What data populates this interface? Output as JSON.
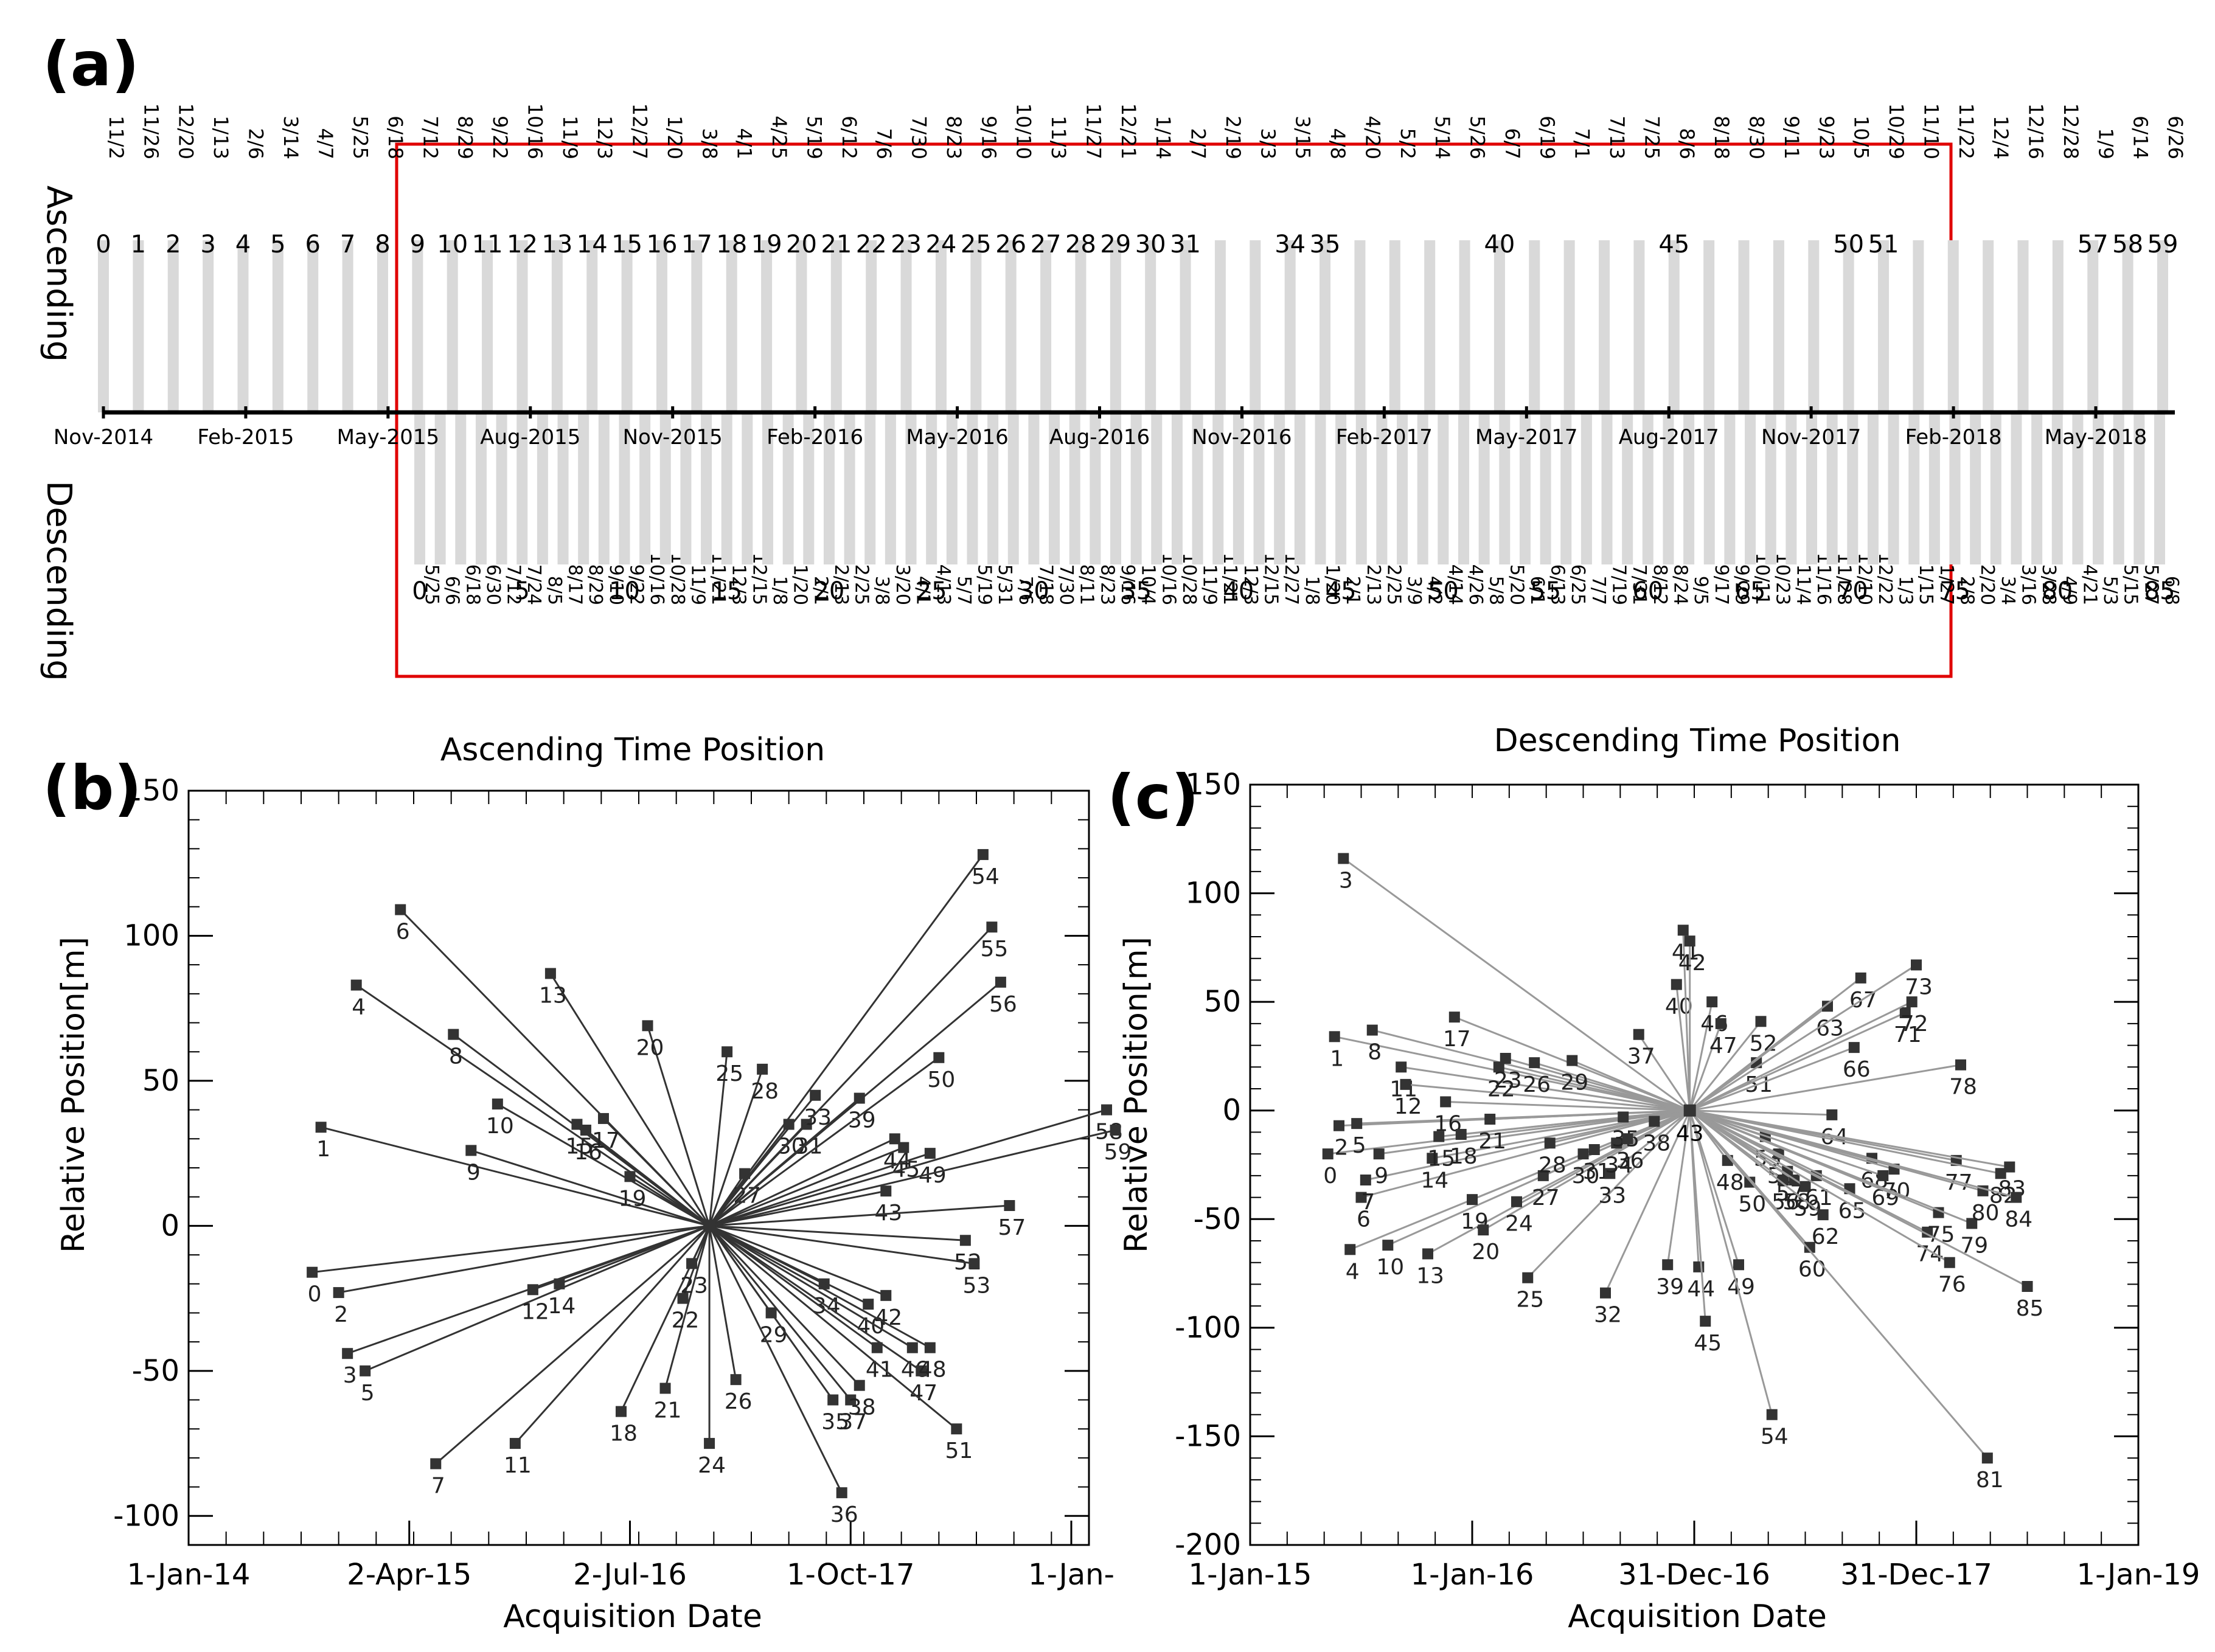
{
  "panel_labels": {
    "a": "(a)",
    "b": "(b)",
    "c": "(c)"
  },
  "colors": {
    "bar": "#d9d9d9",
    "frame": "#e00000",
    "axis": "#000000",
    "line_b": "#333333",
    "line_c": "#999999",
    "marker": "#333333"
  },
  "chart_data": [
    {
      "id": "timeline",
      "type": "bar",
      "title": "",
      "ascending_label": "Ascending",
      "descending_label": "Descending",
      "month_labels": [
        "Nov-2014",
        "Feb-2015",
        "May-2015",
        "Aug-2015",
        "Nov-2015",
        "Feb-2016",
        "May-2016",
        "Aug-2016",
        "Nov-2016",
        "Feb-2017",
        "May-2017",
        "Aug-2017",
        "Nov-2017",
        "Feb-2018",
        "May-2018"
      ],
      "ascending_dates": [
        "11/2",
        "11/26",
        "12/20",
        "1/13",
        "2/6",
        "3/14",
        "4/7",
        "5/25",
        "6/18",
        "7/12",
        "8/29",
        "9/22",
        "10/16",
        "11/9",
        "12/3",
        "12/27",
        "1/20",
        "3/8",
        "4/1",
        "4/25",
        "5/19",
        "6/12",
        "7/6",
        "7/30",
        "8/23",
        "9/16",
        "10/10",
        "11/3",
        "11/27",
        "12/21",
        "1/14",
        "2/7",
        "2/19",
        "3/3",
        "3/15",
        "4/8",
        "4/20",
        "5/2",
        "5/14",
        "5/26",
        "6/7",
        "6/19",
        "7/1",
        "7/13",
        "7/25",
        "8/6",
        "8/18",
        "8/30",
        "9/11",
        "9/23",
        "10/5",
        "10/29",
        "11/10",
        "11/22",
        "12/4",
        "12/16",
        "12/28",
        "1/9",
        "6/14",
        "6/26"
      ],
      "ascending_index_labels": [
        0,
        1,
        2,
        3,
        4,
        5,
        6,
        7,
        8,
        9,
        10,
        11,
        12,
        13,
        14,
        15,
        16,
        17,
        18,
        19,
        20,
        21,
        22,
        23,
        24,
        25,
        26,
        27,
        28,
        29,
        30,
        31,
        34,
        35,
        40,
        45,
        50,
        51,
        57,
        58,
        59
      ],
      "descending_dates": [
        "5/25",
        "6/6",
        "6/18",
        "6/30",
        "7/12",
        "7/24",
        "8/5",
        "8/17",
        "8/29",
        "9/10",
        "9/22",
        "10/16",
        "10/28",
        "11/9",
        "11/21",
        "12/3",
        "12/15",
        "1/8",
        "1/20",
        "2/1",
        "2/13",
        "2/25",
        "3/8",
        "3/20",
        "4/1",
        "4/13",
        "5/7",
        "5/19",
        "5/31",
        "7/6",
        "7/18",
        "7/30",
        "8/11",
        "8/23",
        "9/16",
        "10/4",
        "10/16",
        "10/28",
        "11/9",
        "11/21",
        "12/3",
        "12/15",
        "12/27",
        "1/8",
        "1/20",
        "2/1",
        "2/13",
        "2/25",
        "3/9",
        "4/2",
        "4/14",
        "4/26",
        "5/8",
        "5/20",
        "6/1",
        "6/13",
        "6/25",
        "7/7",
        "7/19",
        "7/31",
        "8/12",
        "8/24",
        "9/5",
        "9/17",
        "9/29",
        "10/11",
        "10/23",
        "11/4",
        "11/16",
        "11/28",
        "12/10",
        "12/22",
        "1/3",
        "1/15",
        "1/27",
        "2/8",
        "2/20",
        "3/4",
        "3/16",
        "3/28",
        "4/9",
        "4/21",
        "5/3",
        "5/15",
        "5/27",
        "6/8"
      ],
      "descending_index_labels": [
        0,
        5,
        10,
        15,
        20,
        25,
        30,
        35,
        40,
        45,
        50,
        55,
        60,
        65,
        70,
        75,
        80,
        85
      ]
    },
    {
      "id": "ascending",
      "type": "scatter",
      "title": "Ascending Time Position",
      "xlabel": "Acquisition Date",
      "ylabel": "Relative Position[m]",
      "x_tick_labels": [
        "1-Jan-14",
        "2-Apr-15",
        "2-Jul-16",
        "1-Oct-17",
        "1-Jan-"
      ],
      "y_tick_labels": [
        "150",
        "100",
        "50",
        "0",
        "-50",
        "-100"
      ],
      "ylim": [
        -110,
        150
      ],
      "master": {
        "label": "",
        "x": 2016.95,
        "y": 0
      },
      "points": [
        {
          "label": "0",
          "x": 2014.7,
          "y": -16
        },
        {
          "label": "1",
          "x": 2014.75,
          "y": 34
        },
        {
          "label": "2",
          "x": 2014.85,
          "y": -23
        },
        {
          "label": "3",
          "x": 2014.9,
          "y": -44
        },
        {
          "label": "4",
          "x": 2014.95,
          "y": 83
        },
        {
          "label": "5",
          "x": 2015.0,
          "y": -50
        },
        {
          "label": "6",
          "x": 2015.2,
          "y": 109
        },
        {
          "label": "7",
          "x": 2015.4,
          "y": -82
        },
        {
          "label": "8",
          "x": 2015.5,
          "y": 66
        },
        {
          "label": "9",
          "x": 2015.6,
          "y": 26
        },
        {
          "label": "10",
          "x": 2015.75,
          "y": 42
        },
        {
          "label": "11",
          "x": 2015.85,
          "y": -75
        },
        {
          "label": "12",
          "x": 2015.95,
          "y": -22
        },
        {
          "label": "13",
          "x": 2016.05,
          "y": 87
        },
        {
          "label": "14",
          "x": 2016.1,
          "y": -20
        },
        {
          "label": "15",
          "x": 2016.2,
          "y": 35
        },
        {
          "label": "16",
          "x": 2016.25,
          "y": 33
        },
        {
          "label": "17",
          "x": 2016.35,
          "y": 37
        },
        {
          "label": "18",
          "x": 2016.45,
          "y": -64
        },
        {
          "label": "19",
          "x": 2016.5,
          "y": 17
        },
        {
          "label": "20",
          "x": 2016.6,
          "y": 69
        },
        {
          "label": "21",
          "x": 2016.7,
          "y": -56
        },
        {
          "label": "22",
          "x": 2016.8,
          "y": -25
        },
        {
          "label": "23",
          "x": 2016.85,
          "y": -13
        },
        {
          "label": "24",
          "x": 2016.95,
          "y": -75
        },
        {
          "label": "25",
          "x": 2017.05,
          "y": 60
        },
        {
          "label": "26",
          "x": 2017.1,
          "y": -53
        },
        {
          "label": "27",
          "x": 2017.15,
          "y": 18
        },
        {
          "label": "28",
          "x": 2017.25,
          "y": 54
        },
        {
          "label": "29",
          "x": 2017.3,
          "y": -30
        },
        {
          "label": "30",
          "x": 2017.4,
          "y": 35
        },
        {
          "label": "31",
          "x": 2017.5,
          "y": 35
        },
        {
          "label": "33",
          "x": 2017.55,
          "y": 45
        },
        {
          "label": "34",
          "x": 2017.6,
          "y": -20
        },
        {
          "label": "35",
          "x": 2017.65,
          "y": -60
        },
        {
          "label": "36",
          "x": 2017.7,
          "y": -92
        },
        {
          "label": "37",
          "x": 2017.75,
          "y": -60
        },
        {
          "label": "38",
          "x": 2017.8,
          "y": -55
        },
        {
          "label": "39",
          "x": 2017.8,
          "y": 44
        },
        {
          "label": "40",
          "x": 2017.85,
          "y": -27
        },
        {
          "label": "41",
          "x": 2017.9,
          "y": -42
        },
        {
          "label": "42",
          "x": 2017.95,
          "y": -24
        },
        {
          "label": "43",
          "x": 2017.95,
          "y": 12
        },
        {
          "label": "44",
          "x": 2018.0,
          "y": 30
        },
        {
          "label": "45",
          "x": 2018.05,
          "y": 27
        },
        {
          "label": "46",
          "x": 2018.1,
          "y": -42
        },
        {
          "label": "47",
          "x": 2018.15,
          "y": -50
        },
        {
          "label": "48",
          "x": 2018.2,
          "y": -42
        },
        {
          "label": "49",
          "x": 2018.2,
          "y": 25
        },
        {
          "label": "50",
          "x": 2018.25,
          "y": 58
        },
        {
          "label": "51",
          "x": 2018.35,
          "y": -70
        },
        {
          "label": "52",
          "x": 2018.4,
          "y": -5
        },
        {
          "label": "53",
          "x": 2018.45,
          "y": -13
        },
        {
          "label": "54",
          "x": 2018.5,
          "y": 128
        },
        {
          "label": "55",
          "x": 2018.55,
          "y": 103
        },
        {
          "label": "56",
          "x": 2018.6,
          "y": 84
        },
        {
          "label": "57",
          "x": 2018.65,
          "y": 7
        },
        {
          "label": "58",
          "x": 2019.2,
          "y": 40
        },
        {
          "label": "59",
          "x": 2019.25,
          "y": 33
        }
      ]
    },
    {
      "id": "descending",
      "type": "scatter",
      "title": "Descending Time Position",
      "xlabel": "Acquisition Date",
      "ylabel": "Relative Position[m]",
      "x_tick_labels": [
        "1-Jan-15",
        "1-Jan-16",
        "31-Dec-16",
        "31-Dec-17",
        "1-Jan-19"
      ],
      "y_tick_labels": [
        "150",
        "100",
        "50",
        "0",
        "-50",
        "-100",
        "-150",
        "-200"
      ],
      "ylim": [
        -200,
        150
      ],
      "master": {
        "label": "43",
        "x": 2016.98,
        "y": 0
      },
      "points": [
        {
          "label": "0",
          "x": 2015.35,
          "y": -20
        },
        {
          "label": "1",
          "x": 2015.38,
          "y": 34
        },
        {
          "label": "2",
          "x": 2015.4,
          "y": -7
        },
        {
          "label": "3",
          "x": 2015.42,
          "y": 116
        },
        {
          "label": "4",
          "x": 2015.45,
          "y": -64
        },
        {
          "label": "5",
          "x": 2015.48,
          "y": -6
        },
        {
          "label": "6",
          "x": 2015.5,
          "y": -40
        },
        {
          "label": "7",
          "x": 2015.52,
          "y": -32
        },
        {
          "label": "8",
          "x": 2015.55,
          "y": 37
        },
        {
          "label": "9",
          "x": 2015.58,
          "y": -20
        },
        {
          "label": "10",
          "x": 2015.62,
          "y": -62
        },
        {
          "label": "11",
          "x": 2015.68,
          "y": 20
        },
        {
          "label": "12",
          "x": 2015.7,
          "y": 12
        },
        {
          "label": "13",
          "x": 2015.8,
          "y": -66
        },
        {
          "label": "14",
          "x": 2015.82,
          "y": -22
        },
        {
          "label": "15",
          "x": 2015.85,
          "y": -12
        },
        {
          "label": "16",
          "x": 2015.88,
          "y": 4
        },
        {
          "label": "17",
          "x": 2015.92,
          "y": 43
        },
        {
          "label": "18",
          "x": 2015.95,
          "y": -11
        },
        {
          "label": "19",
          "x": 2016.0,
          "y": -41
        },
        {
          "label": "20",
          "x": 2016.05,
          "y": -55
        },
        {
          "label": "21",
          "x": 2016.08,
          "y": -4
        },
        {
          "label": "22",
          "x": 2016.12,
          "y": 20
        },
        {
          "label": "23",
          "x": 2016.15,
          "y": 24
        },
        {
          "label": "24",
          "x": 2016.2,
          "y": -42
        },
        {
          "label": "25",
          "x": 2016.25,
          "y": -77
        },
        {
          "label": "26",
          "x": 2016.28,
          "y": 22
        },
        {
          "label": "27",
          "x": 2016.32,
          "y": -30
        },
        {
          "label": "28",
          "x": 2016.35,
          "y": -15
        },
        {
          "label": "29",
          "x": 2016.45,
          "y": 23
        },
        {
          "label": "30",
          "x": 2016.5,
          "y": -20
        },
        {
          "label": "31",
          "x": 2016.55,
          "y": -18
        },
        {
          "label": "32",
          "x": 2016.6,
          "y": -84
        },
        {
          "label": "33",
          "x": 2016.62,
          "y": -29
        },
        {
          "label": "34",
          "x": 2016.65,
          "y": -15
        },
        {
          "label": "35",
          "x": 2016.68,
          "y": -3
        },
        {
          "label": "36",
          "x": 2016.7,
          "y": -13
        },
        {
          "label": "37",
          "x": 2016.75,
          "y": 35
        },
        {
          "label": "38",
          "x": 2016.82,
          "y": -5
        },
        {
          "label": "39",
          "x": 2016.88,
          "y": -71
        },
        {
          "label": "40",
          "x": 2016.92,
          "y": 58
        },
        {
          "label": "41",
          "x": 2016.95,
          "y": 83
        },
        {
          "label": "42",
          "x": 2016.98,
          "y": 78
        },
        {
          "label": "44",
          "x": 2017.02,
          "y": -72
        },
        {
          "label": "45",
          "x": 2017.05,
          "y": -97
        },
        {
          "label": "46",
          "x": 2017.08,
          "y": 50
        },
        {
          "label": "47",
          "x": 2017.12,
          "y": 40
        },
        {
          "label": "48",
          "x": 2017.15,
          "y": -23
        },
        {
          "label": "49",
          "x": 2017.2,
          "y": -71
        },
        {
          "label": "50",
          "x": 2017.25,
          "y": -33
        },
        {
          "label": "51",
          "x": 2017.28,
          "y": 22
        },
        {
          "label": "52",
          "x": 2017.3,
          "y": 41
        },
        {
          "label": "53",
          "x": 2017.32,
          "y": -12
        },
        {
          "label": "54",
          "x": 2017.35,
          "y": -140
        },
        {
          "label": "55",
          "x": 2017.38,
          "y": -20
        },
        {
          "label": "56",
          "x": 2017.4,
          "y": -32
        },
        {
          "label": "57",
          "x": 2017.42,
          "y": -28
        },
        {
          "label": "58",
          "x": 2017.45,
          "y": -32
        },
        {
          "label": "59",
          "x": 2017.5,
          "y": -35
        },
        {
          "label": "60",
          "x": 2017.52,
          "y": -63
        },
        {
          "label": "61",
          "x": 2017.55,
          "y": -30
        },
        {
          "label": "62",
          "x": 2017.58,
          "y": -48
        },
        {
          "label": "63",
          "x": 2017.6,
          "y": 48
        },
        {
          "label": "64",
          "x": 2017.62,
          "y": -2
        },
        {
          "label": "65",
          "x": 2017.7,
          "y": -36
        },
        {
          "label": "66",
          "x": 2017.72,
          "y": 29
        },
        {
          "label": "67",
          "x": 2017.75,
          "y": 61
        },
        {
          "label": "68",
          "x": 2017.8,
          "y": -22
        },
        {
          "label": "69",
          "x": 2017.85,
          "y": -30
        },
        {
          "label": "70",
          "x": 2017.9,
          "y": -27
        },
        {
          "label": "71",
          "x": 2017.95,
          "y": 45
        },
        {
          "label": "72",
          "x": 2017.98,
          "y": 50
        },
        {
          "label": "73",
          "x": 2018.0,
          "y": 67
        },
        {
          "label": "74",
          "x": 2018.05,
          "y": -56
        },
        {
          "label": "75",
          "x": 2018.1,
          "y": -47
        },
        {
          "label": "76",
          "x": 2018.15,
          "y": -70
        },
        {
          "label": "77",
          "x": 2018.18,
          "y": -23
        },
        {
          "label": "78",
          "x": 2018.2,
          "y": 21
        },
        {
          "label": "79",
          "x": 2018.25,
          "y": -52
        },
        {
          "label": "80",
          "x": 2018.3,
          "y": -37
        },
        {
          "label": "81",
          "x": 2018.32,
          "y": -160
        },
        {
          "label": "82",
          "x": 2018.38,
          "y": -29
        },
        {
          "label": "83",
          "x": 2018.42,
          "y": -26
        },
        {
          "label": "84",
          "x": 2018.45,
          "y": -40
        },
        {
          "label": "85",
          "x": 2018.5,
          "y": -81
        }
      ]
    }
  ]
}
